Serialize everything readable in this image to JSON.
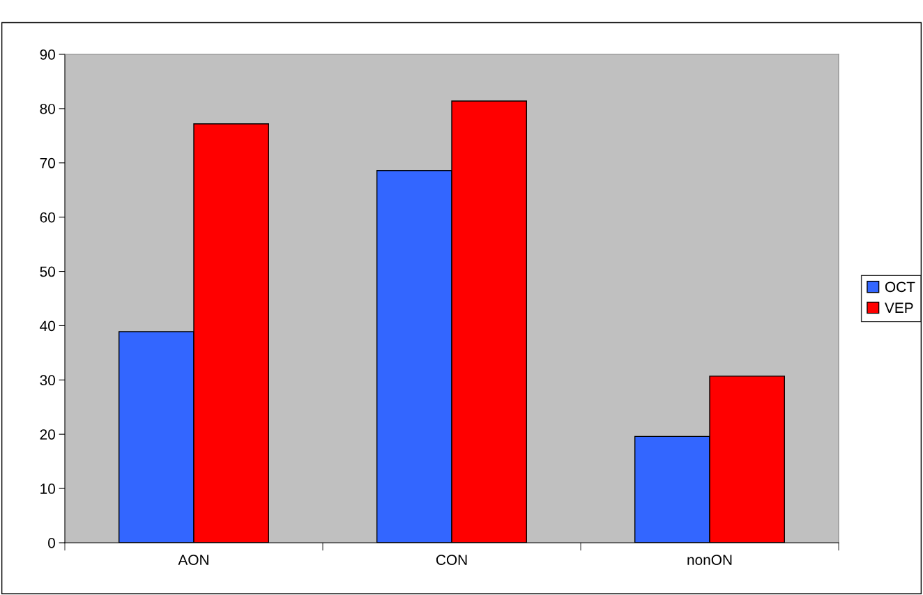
{
  "chart_data": {
    "type": "bar",
    "categories": [
      "AON",
      "CON",
      "nonON"
    ],
    "series": [
      {
        "name": "OCT",
        "color": "#3366ff",
        "values": [
          38.9,
          68.6,
          19.6
        ]
      },
      {
        "name": "VEP",
        "color": "#ff0000",
        "values": [
          77.2,
          81.4,
          30.7
        ]
      }
    ],
    "ylim": [
      0,
      90
    ],
    "yticks": [
      0,
      10,
      20,
      30,
      40,
      50,
      60,
      70,
      80,
      90
    ],
    "grid": false,
    "legend": "right"
  }
}
